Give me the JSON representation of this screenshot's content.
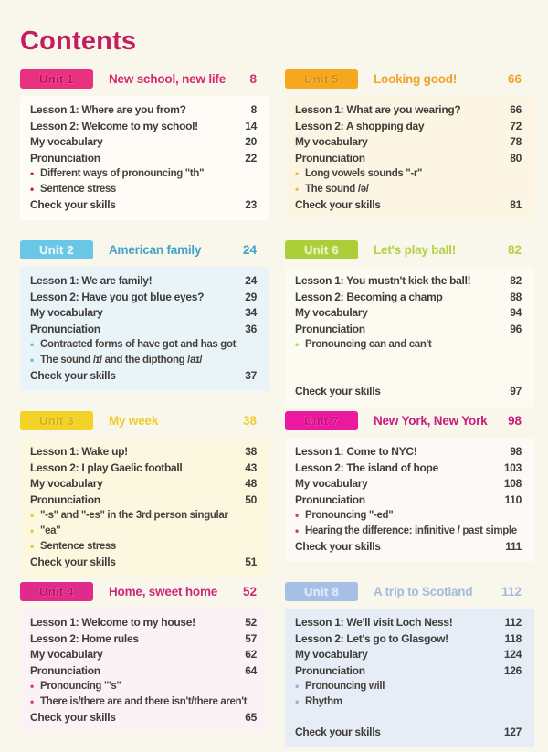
{
  "page": {
    "title": "Contents"
  },
  "theme": {
    "paper_color": "#f9f6ec",
    "title_color": "#c41d60",
    "text_color": "#3f3d3a",
    "bullet_glyph": "•"
  },
  "units": [
    {
      "badge": "Unit 1",
      "title": "New school, new life",
      "page": "8",
      "colors": {
        "badge_bg": "#e93180",
        "badge_text": "#bc0d5d",
        "title": "#d62a6e",
        "block_bg": "#fdfcf6",
        "bullet": "#b22d42"
      },
      "rows": [
        {
          "type": "item",
          "label": "Lesson 1: Where are you from?",
          "page": "8"
        },
        {
          "type": "item",
          "label": "Lesson 2: Welcome to my school!",
          "page": "14"
        },
        {
          "type": "item",
          "label": "My vocabulary",
          "page": "20"
        },
        {
          "type": "item",
          "label": "Pronunciation",
          "page": "22"
        },
        {
          "type": "bullet",
          "label": "Different ways of pronouncing \"th\""
        },
        {
          "type": "bullet",
          "label": "Sentence stress"
        },
        {
          "type": "item",
          "label": "Check your skills",
          "page": "23"
        }
      ]
    },
    {
      "badge": "Unit 2",
      "title": "American family",
      "page": "24",
      "colors": {
        "badge_bg": "#69c6e5",
        "badge_text": "#e8f6fb",
        "title": "#41a3c9",
        "block_bg": "#e9f4f9",
        "bullet": "#64bcd9"
      },
      "rows": [
        {
          "type": "item",
          "label": "Lesson 1: We are family!",
          "page": "24"
        },
        {
          "type": "item",
          "label": "Lesson 2: Have you got blue eyes?",
          "page": "29"
        },
        {
          "type": "item",
          "label": "My vocabulary",
          "page": "34"
        },
        {
          "type": "item",
          "label": "Pronunciation",
          "page": "36"
        },
        {
          "type": "bullet",
          "label": "Contracted forms of have got and has got"
        },
        {
          "type": "bullet",
          "label": "The sound /ɪ/ and the dipthong /aɪ/"
        },
        {
          "type": "item",
          "label": "Check your skills",
          "page": "37"
        }
      ]
    },
    {
      "badge": "Unit 3",
      "title": "My week",
      "page": "38",
      "colors": {
        "badge_bg": "#f3d327",
        "badge_text": "#d6b011",
        "title": "#eecd2d",
        "block_bg": "#fcf7df",
        "bullet": "#e6c63a"
      },
      "rows": [
        {
          "type": "item",
          "label": "Lesson 1: Wake up!",
          "page": "38"
        },
        {
          "type": "item",
          "label": "Lesson 2: I play Gaelic football",
          "page": "43"
        },
        {
          "type": "item",
          "label": "My vocabulary",
          "page": "48"
        },
        {
          "type": "item",
          "label": "Pronunciation",
          "page": "50"
        },
        {
          "type": "bullet",
          "label": "\"-s\" and \"-es\" in the 3rd person singular"
        },
        {
          "type": "bullet",
          "label": "\"ea\""
        },
        {
          "type": "bullet",
          "label": "Sentence stress"
        },
        {
          "type": "item",
          "label": "Check your skills",
          "page": "51"
        }
      ]
    },
    {
      "badge": "Unit 4",
      "title": "Home, sweet home",
      "page": "52",
      "colors": {
        "badge_bg": "#e12b8b",
        "badge_text": "#b80f66",
        "title": "#ca2a78",
        "block_bg": "#fbf2f5",
        "bullet": "#d63580"
      },
      "rows": [
        {
          "type": "item",
          "label": "Lesson 1: Welcome to my house!",
          "page": "52"
        },
        {
          "type": "item",
          "label": "Lesson 2: Home rules",
          "page": "57"
        },
        {
          "type": "item",
          "label": "My vocabulary",
          "page": "62"
        },
        {
          "type": "item",
          "label": "Pronunciation",
          "page": "64"
        },
        {
          "type": "bullet",
          "label": "Pronouncing \"'s\""
        },
        {
          "type": "bullet",
          "label": "There is/there are and there isn't/there aren't"
        },
        {
          "type": "item",
          "label": "Check your skills",
          "page": "65"
        }
      ]
    },
    {
      "badge": "Unit 5",
      "title": "Looking good!",
      "page": "66",
      "colors": {
        "badge_bg": "#f5a71d",
        "badge_text": "#d8890e",
        "title": "#efa32b",
        "block_bg": "#fdf5e4",
        "bullet": "#eebb4a"
      },
      "rows": [
        {
          "type": "item",
          "label": "Lesson 1: What are you wearing?",
          "page": "66"
        },
        {
          "type": "item",
          "label": "Lesson 2: A shopping day",
          "page": "72"
        },
        {
          "type": "item",
          "label": "My vocabulary",
          "page": "78"
        },
        {
          "type": "item",
          "label": "Pronunciation",
          "page": "80"
        },
        {
          "type": "bullet",
          "label": "Long vowels sounds \"-r\""
        },
        {
          "type": "bullet",
          "label": "The sound /ə/"
        },
        {
          "type": "item",
          "label": "Check your skills",
          "page": "81"
        }
      ]
    },
    {
      "badge": "Unit 6",
      "title": "Let's play ball!",
      "page": "82",
      "colors": {
        "badge_bg": "#accf39",
        "badge_text": "#e9f3bd",
        "title": "#b3d243",
        "block_bg": "#fbfbf2",
        "bullet": "#b9d356"
      },
      "rows": [
        {
          "type": "item",
          "label": "Lesson 1: You mustn't kick the ball!",
          "page": "82"
        },
        {
          "type": "item",
          "label": "Lesson 2: Becoming a champ",
          "page": "88"
        },
        {
          "type": "item",
          "label": "My vocabulary",
          "page": "94"
        },
        {
          "type": "item",
          "label": "Pronunciation",
          "page": "96"
        },
        {
          "type": "bullet",
          "label": "Pronouncing can and can't"
        },
        {
          "type": "spacer",
          "height": 34
        },
        {
          "type": "item",
          "label": "Check your skills",
          "page": "97"
        }
      ]
    },
    {
      "badge": "Unit 7",
      "title": "New York, New York",
      "page": "98",
      "colors": {
        "badge_bg": "#ec18a0",
        "badge_text": "#c20c7b",
        "title": "#c91d7c",
        "block_bg": "#fdf9f7",
        "bullet": "#d8327f"
      },
      "rows": [
        {
          "type": "item",
          "label": "Lesson 1: Come to NYC!",
          "page": "98"
        },
        {
          "type": "item",
          "label": "Lesson 2: The island of hope",
          "page": "103"
        },
        {
          "type": "item",
          "label": "My vocabulary",
          "page": "108"
        },
        {
          "type": "item",
          "label": "Pronunciation",
          "page": "110"
        },
        {
          "type": "bullet",
          "label": "Pronouncing \"-ed\""
        },
        {
          "type": "bullet",
          "label": "Hearing the difference: infinitive / past simple"
        },
        {
          "type": "item",
          "label": "Check your skills",
          "page": "111"
        }
      ]
    },
    {
      "badge": "Unit 8",
      "title": "A trip to Scotland",
      "page": "112",
      "colors": {
        "badge_bg": "#a5bfe6",
        "badge_text": "#dfe8f7",
        "title": "#a3bbdd",
        "block_bg": "#e6edf6",
        "bullet": "#93b0d8"
      },
      "rows": [
        {
          "type": "item",
          "label": "Lesson 1: We'll visit Loch Ness!",
          "page": "112"
        },
        {
          "type": "item",
          "label": "Lesson 2: Let's go to Glasgow!",
          "page": "118"
        },
        {
          "type": "item",
          "label": "My vocabulary",
          "page": "124"
        },
        {
          "type": "item",
          "label": "Pronunciation",
          "page": "126"
        },
        {
          "type": "bullet",
          "label": "Pronouncing will"
        },
        {
          "type": "bullet",
          "label": "Rhythm"
        },
        {
          "type": "spacer",
          "height": 16
        },
        {
          "type": "item",
          "label": "Check your skills",
          "page": "127"
        }
      ]
    }
  ]
}
